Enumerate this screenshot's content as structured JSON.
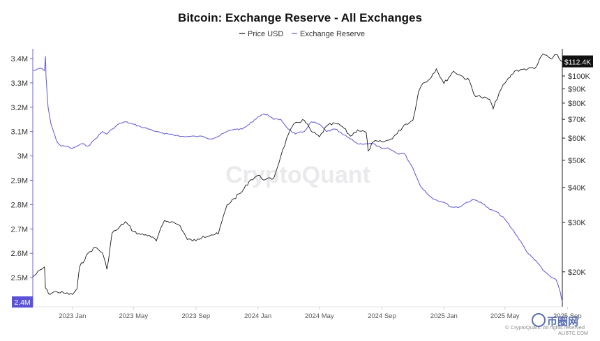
{
  "colors": {
    "price": "#1a1a1a",
    "reserve": "#6b63d6",
    "price_badge": "#111111",
    "reserve_badge": "#5b52d8",
    "watermark": "#d9d9e0",
    "brand": "#5a6fb0"
  },
  "watermark": "CryptoQuant",
  "copyright": "© CryptoQuant. All rights reserved",
  "brand": {
    "name": "币圈网",
    "url": "ALIBTC.COM"
  },
  "chart_data": {
    "type": "line",
    "title": "Bitcoin: Exchange Reserve - All Exchanges",
    "legend": [
      "Price USD",
      "Exchange Reserve"
    ],
    "legend_position": "top-center",
    "grid": false,
    "x_range": [
      "2022-10-15",
      "2025-08-22"
    ],
    "x_ticks": [
      {
        "label": "2023 Jan",
        "date": "2023-01-01"
      },
      {
        "label": "2023 May",
        "date": "2023-05-01"
      },
      {
        "label": "2023 Sep",
        "date": "2023-09-01"
      },
      {
        "label": "2024 Jan",
        "date": "2024-01-01"
      },
      {
        "label": "2024 May",
        "date": "2024-05-01"
      },
      {
        "label": "2024 Sep",
        "date": "2024-09-01"
      },
      {
        "label": "2025 Jan",
        "date": "2025-01-01"
      },
      {
        "label": "2025 May",
        "date": "2025-05-01"
      },
      {
        "label": "2025 Sep",
        "date": "2025-09-01"
      }
    ],
    "left_axis": {
      "name": "Exchange Reserve",
      "ylim": [
        2380000,
        3440000
      ],
      "ticks": [
        {
          "label": "3.4M",
          "value": 3400000
        },
        {
          "label": "3.3M",
          "value": 3300000
        },
        {
          "label": "3.2M",
          "value": 3200000
        },
        {
          "label": "3.1M",
          "value": 3100000
        },
        {
          "label": "3M",
          "value": 3000000
        },
        {
          "label": "2.9M",
          "value": 2900000
        },
        {
          "label": "2.8M",
          "value": 2800000
        },
        {
          "label": "2.7M",
          "value": 2700000
        },
        {
          "label": "2.6M",
          "value": 2600000
        },
        {
          "label": "2.5M",
          "value": 2500000
        }
      ],
      "current_label": "2.4M",
      "current_value": 2400000
    },
    "right_axis": {
      "name": "Price USD",
      "scale": "log",
      "ylim": [
        15000,
        125000
      ],
      "ticks": [
        {
          "label": "$100K",
          "value": 100000
        },
        {
          "label": "$90K",
          "value": 90000
        },
        {
          "label": "$80K",
          "value": 80000
        },
        {
          "label": "$70K",
          "value": 70000
        },
        {
          "label": "$60K",
          "value": 60000
        },
        {
          "label": "$50K",
          "value": 50000
        },
        {
          "label": "$40K",
          "value": 40000
        },
        {
          "label": "$30K",
          "value": 30000
        },
        {
          "label": "$20K",
          "value": 20000
        }
      ],
      "current_label": "$112.4K",
      "current_value": 112400
    },
    "series": [
      {
        "name": "Exchange Reserve",
        "axis": "left",
        "x": [
          "2022-10-15",
          "2022-11-01",
          "2022-11-07",
          "2022-11-09",
          "2022-11-10",
          "2022-11-14",
          "2022-11-20",
          "2022-12-01",
          "2022-12-10",
          "2022-12-20",
          "2023-01-01",
          "2023-01-10",
          "2023-01-20",
          "2023-02-01",
          "2023-02-15",
          "2023-03-01",
          "2023-03-10",
          "2023-03-20",
          "2023-04-01",
          "2023-04-15",
          "2023-05-01",
          "2023-05-15",
          "2023-06-01",
          "2023-06-15",
          "2023-07-01",
          "2023-07-15",
          "2023-08-01",
          "2023-08-15",
          "2023-09-01",
          "2023-09-15",
          "2023-10-01",
          "2023-10-15",
          "2023-11-01",
          "2023-11-15",
          "2023-12-01",
          "2023-12-15",
          "2024-01-01",
          "2024-01-10",
          "2024-01-20",
          "2024-02-01",
          "2024-02-15",
          "2024-03-01",
          "2024-03-15",
          "2024-04-01",
          "2024-04-15",
          "2024-05-01",
          "2024-05-15",
          "2024-06-01",
          "2024-06-15",
          "2024-07-01",
          "2024-07-15",
          "2024-08-01",
          "2024-08-15",
          "2024-09-01",
          "2024-09-15",
          "2024-10-01",
          "2024-10-15",
          "2024-11-01",
          "2024-11-15",
          "2024-12-01",
          "2024-12-15",
          "2025-01-01",
          "2025-01-15",
          "2025-02-01",
          "2025-02-15",
          "2025-03-01",
          "2025-03-15",
          "2025-04-01",
          "2025-04-15",
          "2025-05-01",
          "2025-05-15",
          "2025-06-01",
          "2025-06-15",
          "2025-07-01",
          "2025-07-15",
          "2025-08-01",
          "2025-08-10",
          "2025-08-18",
          "2025-08-22"
        ],
        "values": [
          3350000,
          3360000,
          3350000,
          3410000,
          3330000,
          3200000,
          3130000,
          3060000,
          3040000,
          3040000,
          3030000,
          3040000,
          3050000,
          3040000,
          3070000,
          3100000,
          3090000,
          3110000,
          3130000,
          3140000,
          3130000,
          3120000,
          3110000,
          3100000,
          3090000,
          3090000,
          3080000,
          3080000,
          3080000,
          3080000,
          3070000,
          3080000,
          3100000,
          3110000,
          3110000,
          3130000,
          3160000,
          3170000,
          3170000,
          3150000,
          3150000,
          3110000,
          3090000,
          3100000,
          3140000,
          3130000,
          3100000,
          3110000,
          3090000,
          3070000,
          3050000,
          3050000,
          3050000,
          3030000,
          3030000,
          3010000,
          3010000,
          2950000,
          2880000,
          2840000,
          2820000,
          2810000,
          2790000,
          2790000,
          2810000,
          2820000,
          2810000,
          2780000,
          2770000,
          2740000,
          2700000,
          2650000,
          2600000,
          2570000,
          2530000,
          2500000,
          2490000,
          2440000,
          2400000
        ]
      },
      {
        "name": "Price USD",
        "axis": "right",
        "x": [
          "2022-10-15",
          "2022-11-01",
          "2022-11-07",
          "2022-11-09",
          "2022-11-15",
          "2022-12-01",
          "2022-12-15",
          "2023-01-01",
          "2023-01-10",
          "2023-01-15",
          "2023-02-01",
          "2023-02-15",
          "2023-03-01",
          "2023-03-10",
          "2023-03-20",
          "2023-04-01",
          "2023-04-15",
          "2023-05-01",
          "2023-05-15",
          "2023-06-01",
          "2023-06-15",
          "2023-07-01",
          "2023-07-15",
          "2023-08-01",
          "2023-08-15",
          "2023-09-01",
          "2023-09-15",
          "2023-10-01",
          "2023-10-15",
          "2023-11-01",
          "2023-11-15",
          "2023-12-01",
          "2023-12-15",
          "2024-01-01",
          "2024-01-15",
          "2024-02-01",
          "2024-02-15",
          "2024-03-01",
          "2024-03-15",
          "2024-04-01",
          "2024-04-15",
          "2024-05-01",
          "2024-05-15",
          "2024-06-01",
          "2024-06-15",
          "2024-07-01",
          "2024-07-15",
          "2024-08-01",
          "2024-08-05",
          "2024-08-15",
          "2024-09-01",
          "2024-09-15",
          "2024-10-01",
          "2024-10-15",
          "2024-11-01",
          "2024-11-12",
          "2024-11-20",
          "2024-12-01",
          "2024-12-17",
          "2025-01-01",
          "2025-01-20",
          "2025-02-01",
          "2025-02-20",
          "2025-03-01",
          "2025-03-15",
          "2025-04-01",
          "2025-04-08",
          "2025-04-20",
          "2025-05-01",
          "2025-05-20",
          "2025-06-01",
          "2025-06-15",
          "2025-07-01",
          "2025-07-15",
          "2025-08-01",
          "2025-08-10",
          "2025-08-15",
          "2025-08-22"
        ],
        "values": [
          19200,
          20400,
          20800,
          17500,
          16700,
          17000,
          16800,
          16600,
          17400,
          20800,
          23300,
          24500,
          23400,
          20400,
          27500,
          28500,
          30200,
          27900,
          27200,
          27000,
          25800,
          30500,
          30200,
          29200,
          26100,
          25800,
          26800,
          27100,
          27300,
          34600,
          36500,
          38700,
          42200,
          44200,
          42600,
          43100,
          51800,
          62000,
          68200,
          69500,
          63500,
          60600,
          66200,
          67700,
          66000,
          61000,
          64200,
          62900,
          54000,
          58200,
          58100,
          59000,
          62300,
          66900,
          69500,
          87900,
          94000,
          96400,
          106000,
          94000,
          104000,
          101000,
          96300,
          86000,
          84000,
          82500,
          76300,
          87500,
          94200,
          104000,
          105500,
          106000,
          107500,
          119800,
          115000,
          119000,
          116000,
          112400
        ]
      }
    ]
  }
}
